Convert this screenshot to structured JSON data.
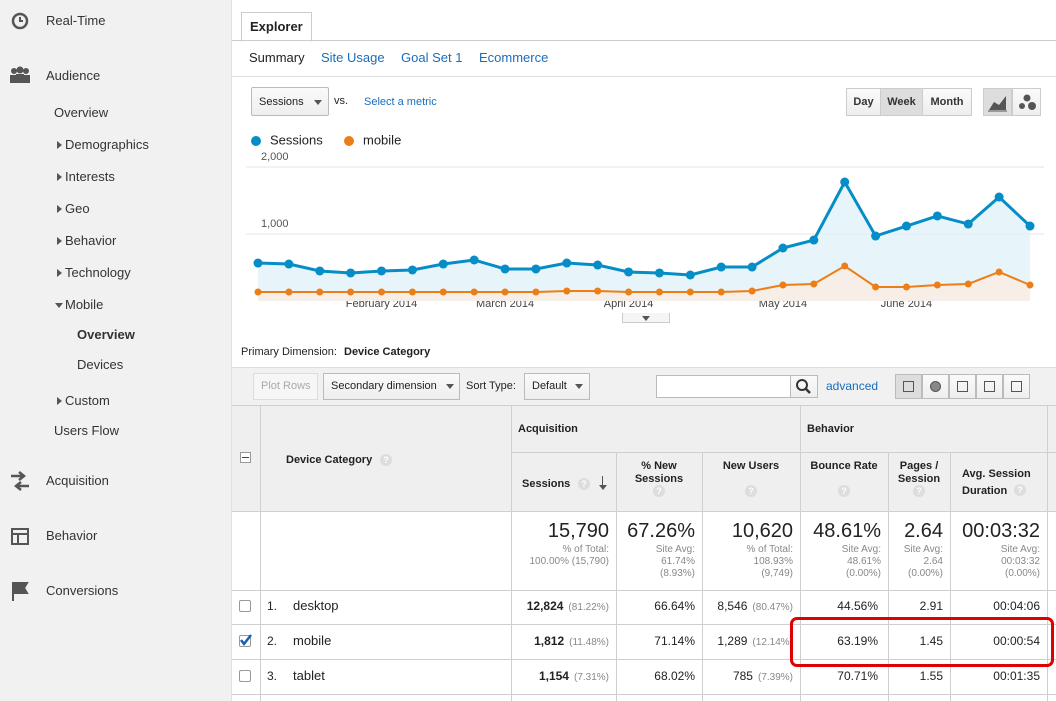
{
  "sidebar": {
    "items": [
      "Real-Time",
      "Audience",
      "Overview",
      "Demographics",
      "Interests",
      "Geo",
      "Behavior",
      "Technology",
      "Mobile",
      "Overview",
      "Devices",
      "Custom",
      "Users Flow",
      "Acquisition",
      "Behavior",
      "Conversions"
    ]
  },
  "tabs": {
    "active": "Explorer",
    "sub": [
      "Summary",
      "Site Usage",
      "Goal Set 1",
      "Ecommerce"
    ]
  },
  "controls": {
    "metric": "Sessions",
    "vs": "vs.",
    "select": "Select a metric",
    "periods": [
      "Day",
      "Week",
      "Month"
    ],
    "active_period": 1
  },
  "chart_data": {
    "type": "line",
    "categories": [
      null,
      null,
      null,
      null,
      "February 2014",
      null,
      null,
      null,
      "March 2014",
      null,
      null,
      null,
      "April 2014",
      null,
      null,
      null,
      null,
      "May 2014",
      null,
      null,
      null,
      "June 2014",
      null,
      null,
      null,
      null
    ],
    "series": [
      {
        "name": "Sessions",
        "color": "#058dc7",
        "fill": "#e1f2f9",
        "values": [
          567,
          552,
          448,
          418,
          448,
          463,
          552,
          612,
          478,
          478,
          567,
          537,
          433,
          418,
          388,
          507,
          507,
          791,
          910,
          1776,
          970,
          1119,
          1269,
          1149,
          1552,
          1119
        ]
      },
      {
        "name": "mobile",
        "color": "#ed7e17",
        "fill": "#fbeee2",
        "values": [
          134,
          134,
          134,
          134,
          134,
          134,
          134,
          134,
          134,
          134,
          149,
          149,
          134,
          134,
          134,
          134,
          149,
          239,
          254,
          522,
          209,
          209,
          239,
          254,
          433,
          239
        ]
      }
    ],
    "ylim": [
      0,
      2000
    ],
    "yticks": [
      {
        "value": 1000,
        "label": "1,000"
      },
      {
        "value": 2000,
        "label": "2,000"
      }
    ],
    "grid": true
  },
  "primary_dimension": {
    "label": "Primary Dimension:",
    "value": "Device Category"
  },
  "toolbar": {
    "plot_rows": "Plot Rows",
    "secondary": "Secondary dimension",
    "sort_type": "Sort Type:",
    "sort": "Default",
    "advanced": "advanced"
  },
  "table": {
    "help": "?",
    "groups": [
      "Acquisition",
      "Behavior"
    ],
    "headers": [
      "Device Category",
      "Sessions",
      "% New Sessions",
      "New Users",
      "Bounce Rate",
      "Pages / Session",
      "Avg. Session Duration"
    ],
    "totals": [
      {
        "value": "15,790",
        "lines": [
          "% of Total:",
          "100.00% (15,790)"
        ]
      },
      {
        "value": "67.26%",
        "lines": [
          "Site Avg:",
          "61.74%",
          "(8.93%)"
        ]
      },
      {
        "value": "10,620",
        "lines": [
          "% of Total:",
          "108.93%",
          "(9,749)"
        ]
      },
      {
        "value": "48.61%",
        "lines": [
          "Site Avg:",
          "48.61%",
          "(0.00%)"
        ]
      },
      {
        "value": "2.64",
        "lines": [
          "Site Avg:",
          "2.64",
          "(0.00%)"
        ]
      },
      {
        "value": "00:03:32",
        "lines": [
          "Site Avg:",
          "00:03:32",
          "(0.00%)"
        ]
      }
    ],
    "rows": [
      {
        "index": "1.",
        "name": "desktop",
        "checked": false,
        "sessions": "12,824",
        "sessions_share": "(81.22%)",
        "new_sessions": "66.64%",
        "new_users": "8,546",
        "new_users_share": "(80.47%)",
        "bounce_rate": "44.56%",
        "pages_per_session": "2.91",
        "duration": "00:04:06"
      },
      {
        "index": "2.",
        "name": "mobile",
        "checked": true,
        "sessions": "1,812",
        "sessions_share": "(11.48%)",
        "new_sessions": "71.14%",
        "new_users": "1,289",
        "new_users_share": "(12.14%)",
        "bounce_rate": "63.19%",
        "pages_per_session": "1.45",
        "duration": "00:00:54"
      },
      {
        "index": "3.",
        "name": "tablet",
        "checked": false,
        "sessions": "1,154",
        "sessions_share": "(7.31%)",
        "new_sessions": "68.02%",
        "new_users": "785",
        "new_users_share": "(7.39%)",
        "bounce_rate": "70.71%",
        "pages_per_session": "1.55",
        "duration": "00:01:35"
      }
    ]
  }
}
